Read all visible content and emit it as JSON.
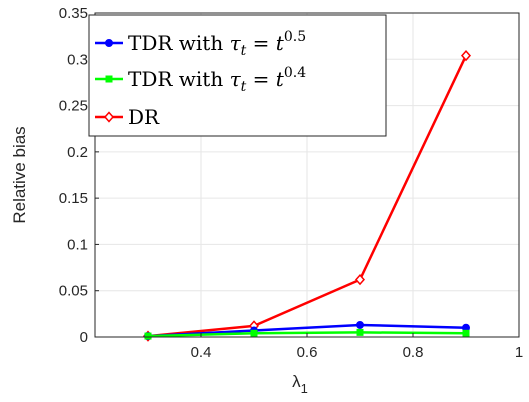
{
  "chart_data": {
    "type": "line",
    "xlabel": "λ",
    "xlabel_subscript": "1",
    "ylabel": "Relative bias",
    "xlim": [
      0.2,
      1.0
    ],
    "ylim": [
      0,
      0.35
    ],
    "xticks": [
      "0.4",
      "0.6",
      "0.8",
      "1"
    ],
    "xtick_values": [
      0.4,
      0.6,
      0.8,
      1.0
    ],
    "yticks": [
      "0",
      "0.05",
      "0.1",
      "0.15",
      "0.2",
      "0.25",
      "0.3",
      "0.35"
    ],
    "ytick_values": [
      0,
      0.05,
      0.1,
      0.15,
      0.2,
      0.25,
      0.3,
      0.35
    ],
    "grid": true,
    "legend_position": "top-left",
    "x": [
      0.3,
      0.5,
      0.7,
      0.9
    ],
    "series": [
      {
        "name": "TDR with τt = t^0.5",
        "label_parts": {
          "prefix": "TDR with ",
          "tau": "τ",
          "sub": "t",
          "eq": " = ",
          "base": "t",
          "exp": "0.5"
        },
        "values": [
          0.001,
          0.007,
          0.013,
          0.01
        ],
        "color": "#0000ff",
        "marker": "circle"
      },
      {
        "name": "TDR with τt = t^0.4",
        "label_parts": {
          "prefix": "TDR with ",
          "tau": "τ",
          "sub": "t",
          "eq": " = ",
          "base": "t",
          "exp": "0.4"
        },
        "values": [
          0.001,
          0.004,
          0.005,
          0.004
        ],
        "color": "#00ff00",
        "marker": "square"
      },
      {
        "name": "DR",
        "label_parts": {
          "prefix": "DR"
        },
        "values": [
          0.001,
          0.012,
          0.062,
          0.304
        ],
        "color": "#ff0000",
        "marker": "diamond"
      }
    ]
  }
}
